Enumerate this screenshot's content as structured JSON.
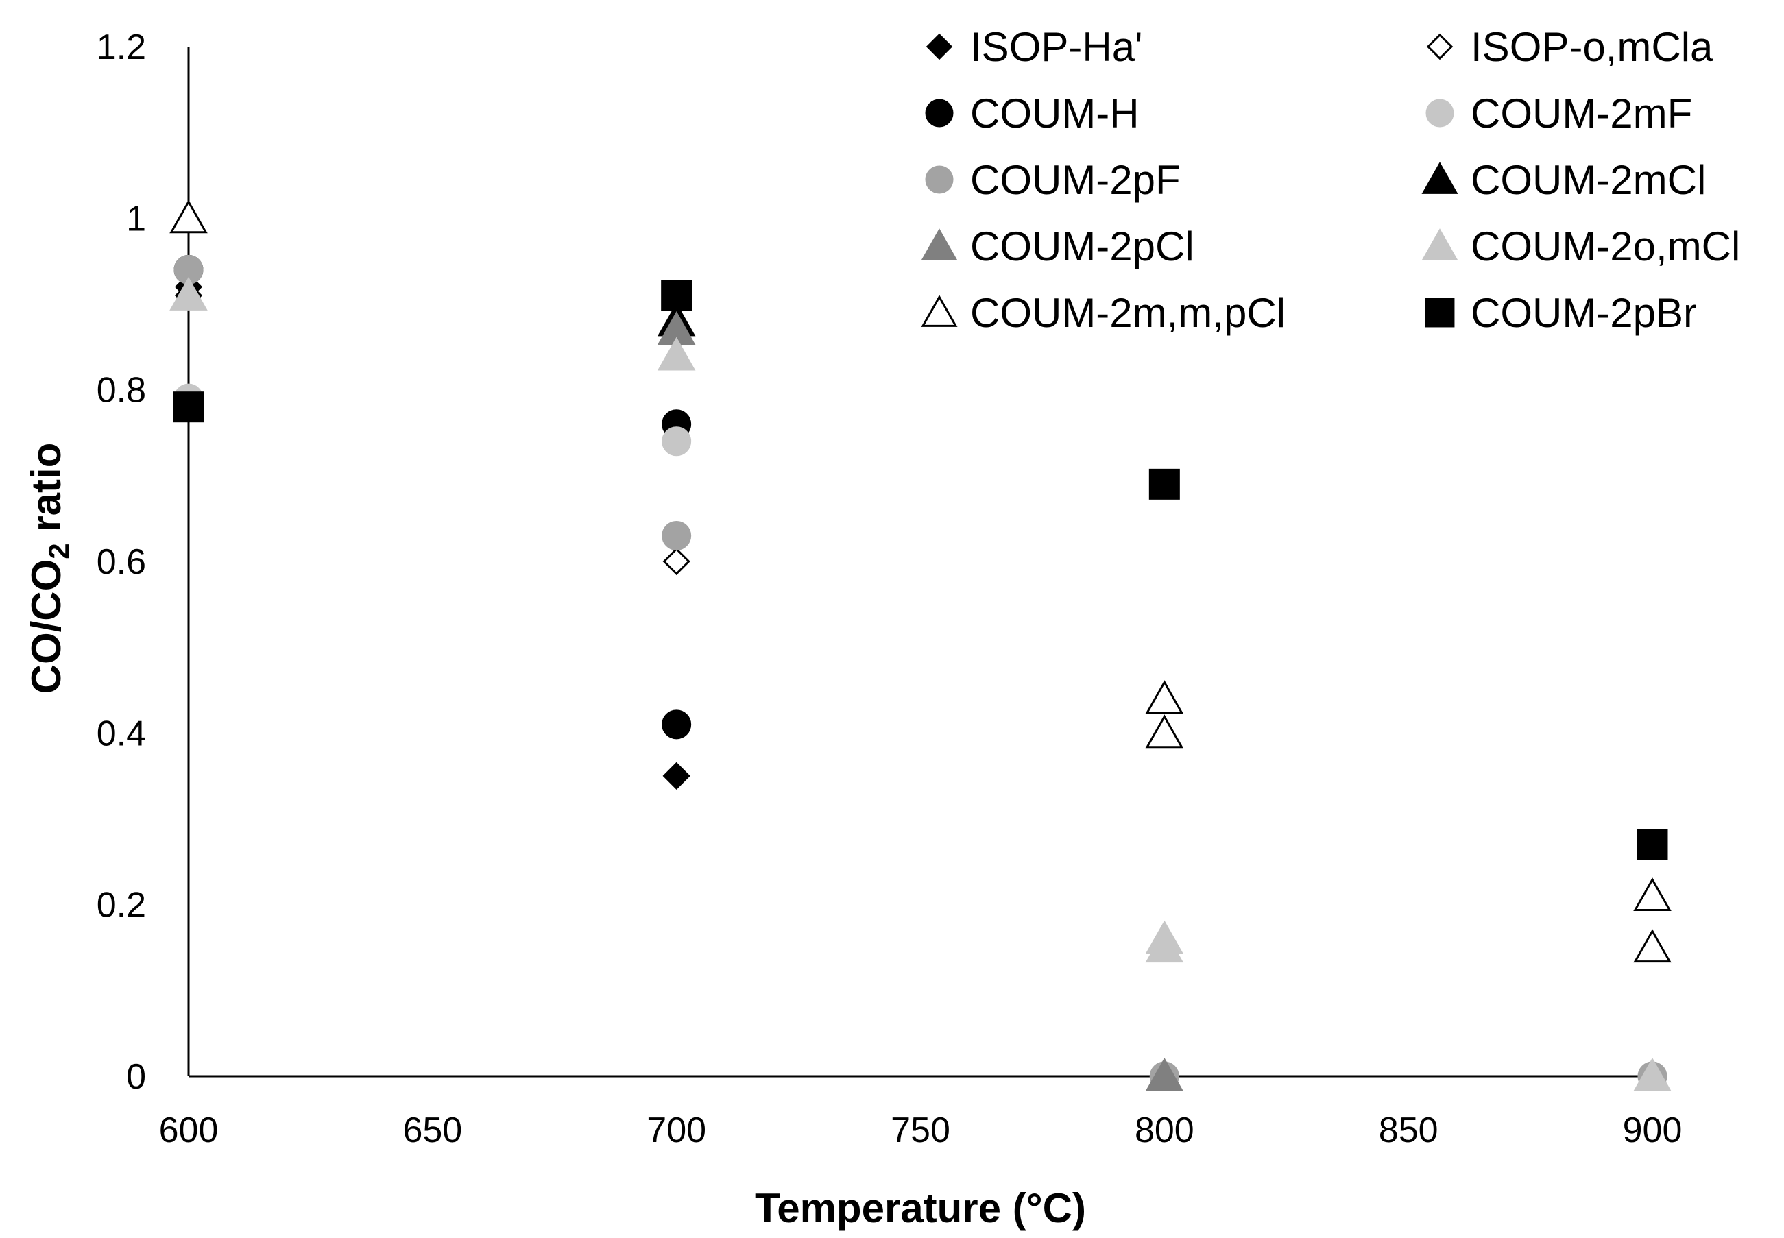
{
  "chart_data": {
    "type": "scatter",
    "title": "",
    "xlabel": "Temperature (°C)",
    "ylabel_main": "CO/CO",
    "ylabel_sub": "2",
    "ylabel_rest": " ratio",
    "xlim": [
      600,
      900
    ],
    "ylim": [
      0,
      1.2
    ],
    "xticks": [
      "600",
      "650",
      "700",
      "750",
      "800",
      "850",
      "900"
    ],
    "yticks": [
      "0",
      "0.2",
      "0.4",
      "0.6",
      "0.8",
      "1",
      "1.2"
    ],
    "grid": false,
    "legend_position": "top-right",
    "series": [
      {
        "name": "ISOP-Ha'",
        "marker": "diamond",
        "fill": "#000000",
        "stroke": "#000000",
        "points": [
          [
            600,
            0.92
          ],
          [
            700,
            0.35
          ]
        ]
      },
      {
        "name": "ISOP-o,mCla",
        "marker": "diamond",
        "fill": "#ffffff",
        "stroke": "#000000",
        "points": [
          [
            600,
            0.91
          ],
          [
            700,
            0.6
          ]
        ]
      },
      {
        "name": "COUM-H",
        "marker": "circle",
        "fill": "#000000",
        "stroke": "#000000",
        "points": [
          [
            600,
            0.94
          ],
          [
            700,
            0.76
          ],
          [
            700,
            0.41
          ]
        ]
      },
      {
        "name": "COUM-2mF",
        "marker": "circle",
        "fill": "#c6c6c6",
        "stroke": "#c6c6c6",
        "points": [
          [
            600,
            0.79
          ],
          [
            700,
            0.74
          ],
          [
            800,
            0.0
          ],
          [
            900,
            0.0
          ]
        ]
      },
      {
        "name": "COUM-2pF",
        "marker": "circle",
        "fill": "#a3a3a3",
        "stroke": "#a3a3a3",
        "points": [
          [
            600,
            0.94
          ],
          [
            700,
            0.63
          ],
          [
            800,
            0.0
          ],
          [
            900,
            0.0
          ]
        ]
      },
      {
        "name": "COUM-2mCl",
        "marker": "triangle",
        "fill": "#000000",
        "stroke": "#000000",
        "points": [
          [
            700,
            0.88
          ]
        ]
      },
      {
        "name": "COUM-2pCl",
        "marker": "triangle",
        "fill": "#808080",
        "stroke": "#808080",
        "points": [
          [
            700,
            0.87
          ],
          [
            800,
            0.0
          ]
        ]
      },
      {
        "name": "COUM-2o,mCl",
        "marker": "triangle",
        "fill": "#c6c6c6",
        "stroke": "#c6c6c6",
        "points": [
          [
            600,
            0.91
          ],
          [
            700,
            0.84
          ],
          [
            800,
            0.16
          ],
          [
            800,
            0.15
          ],
          [
            900,
            0.0
          ]
        ]
      },
      {
        "name": "COUM-2m,m,pCl",
        "marker": "triangle",
        "fill": "#ffffff",
        "stroke": "#000000",
        "points": [
          [
            600,
            1.0
          ],
          [
            800,
            0.44
          ],
          [
            800,
            0.4
          ],
          [
            900,
            0.21
          ],
          [
            900,
            0.15
          ]
        ]
      },
      {
        "name": "COUM-2pBr",
        "marker": "square",
        "fill": "#000000",
        "stroke": "#000000",
        "points": [
          [
            600,
            0.78
          ],
          [
            700,
            0.91
          ],
          [
            800,
            0.69
          ],
          [
            900,
            0.27
          ]
        ]
      }
    ]
  }
}
